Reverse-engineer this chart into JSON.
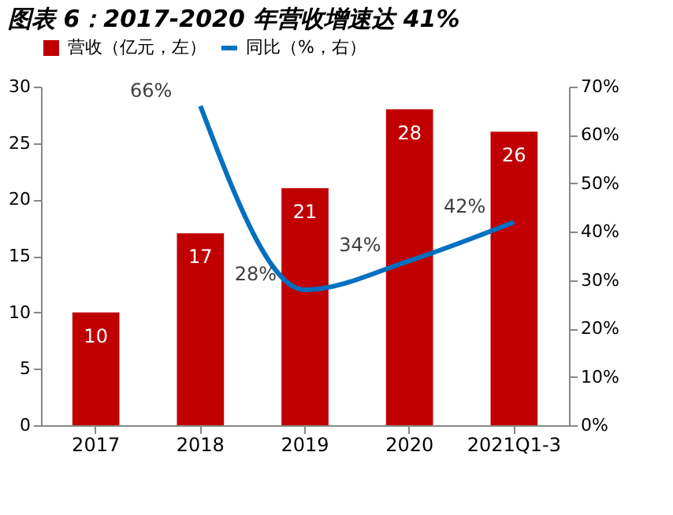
{
  "chart_data": {
    "type": "bar",
    "title": "图表 6：2017-2020 年营收增速达 41%",
    "categories": [
      "2017",
      "2018",
      "2019",
      "2020",
      "2021Q1-3"
    ],
    "ylim": [
      0,
      30
    ],
    "yticks": [
      0,
      5,
      10,
      15,
      20,
      25,
      30
    ],
    "y2lim": [
      0,
      70
    ],
    "y2ticks": [
      {
        "value": 0,
        "label": "0%"
      },
      {
        "value": 10,
        "label": "10%"
      },
      {
        "value": 20,
        "label": "20%"
      },
      {
        "value": 30,
        "label": "30%"
      },
      {
        "value": 40,
        "label": "40%"
      },
      {
        "value": 50,
        "label": "50%"
      },
      {
        "value": 60,
        "label": "60%"
      },
      {
        "value": 70,
        "label": "70%"
      }
    ],
    "series": [
      {
        "name": "营收（亿元，左）",
        "color": "#c00000",
        "values": [
          10,
          17,
          21,
          28,
          26
        ],
        "value_labels": [
          "10",
          "17",
          "21",
          "28",
          "26"
        ]
      },
      {
        "name": "同比（%，右）",
        "type": "line",
        "axis": "y2",
        "color": "#0070c0",
        "values": [
          null,
          66,
          28,
          34,
          42
        ],
        "value_labels": [
          null,
          "66%",
          "28%",
          "34%",
          "42%"
        ]
      }
    ],
    "legend": "top",
    "grid": false
  }
}
